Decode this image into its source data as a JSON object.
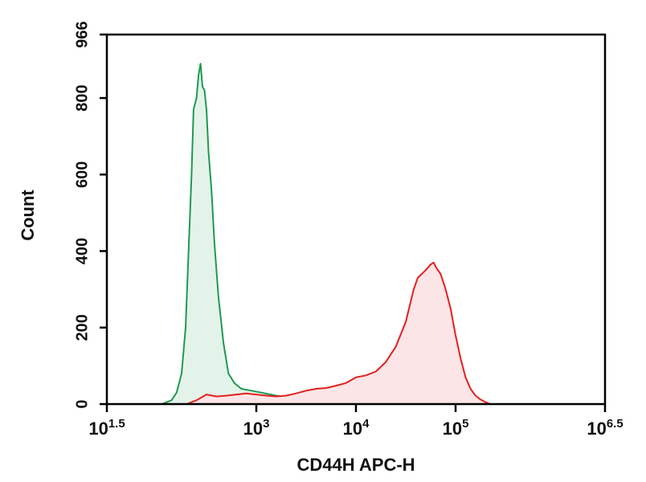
{
  "chart_data": {
    "type": "area",
    "title": "",
    "xlabel": "CD44H APC-H",
    "ylabel": "Count",
    "x_scale": "log10",
    "xlim_log10": [
      1.5,
      6.5
    ],
    "ylim": [
      0,
      966
    ],
    "grid": false,
    "legend": "none",
    "x_ticks": [
      {
        "base": "10",
        "exp": "1.5",
        "log10": 1.5
      },
      {
        "base": "10",
        "exp": "3",
        "log10": 3
      },
      {
        "base": "10",
        "exp": "4",
        "log10": 4
      },
      {
        "base": "10",
        "exp": "5",
        "log10": 5
      },
      {
        "base": "10",
        "exp": "6.5",
        "log10": 6.5
      }
    ],
    "y_ticks": [
      {
        "label": "0",
        "value": 0
      },
      {
        "label": "200",
        "value": 200
      },
      {
        "label": "400",
        "value": 400
      },
      {
        "label": "600",
        "value": 600
      },
      {
        "label": "800",
        "value": 800
      },
      {
        "label": "966",
        "value": 966
      }
    ],
    "series": [
      {
        "color": "#1e9a52",
        "fill": "#e4f3e9",
        "points": [
          [
            2.05,
            0
          ],
          [
            2.15,
            10
          ],
          [
            2.2,
            30
          ],
          [
            2.25,
            80
          ],
          [
            2.29,
            200
          ],
          [
            2.32,
            400
          ],
          [
            2.35,
            600
          ],
          [
            2.37,
            770
          ],
          [
            2.4,
            800
          ],
          [
            2.42,
            860
          ],
          [
            2.44,
            890
          ],
          [
            2.46,
            830
          ],
          [
            2.48,
            820
          ],
          [
            2.5,
            770
          ],
          [
            2.52,
            660
          ],
          [
            2.55,
            560
          ],
          [
            2.58,
            420
          ],
          [
            2.62,
            280
          ],
          [
            2.67,
            160
          ],
          [
            2.72,
            80
          ],
          [
            2.78,
            55
          ],
          [
            2.85,
            40
          ],
          [
            2.95,
            35
          ],
          [
            3.05,
            30
          ],
          [
            3.2,
            22
          ],
          [
            3.4,
            12
          ],
          [
            3.6,
            6
          ],
          [
            3.85,
            3
          ],
          [
            4.1,
            0
          ]
        ]
      },
      {
        "color": "#e32020",
        "fill": "#fce5e6",
        "points": [
          [
            2.3,
            0
          ],
          [
            2.4,
            10
          ],
          [
            2.5,
            25
          ],
          [
            2.6,
            20
          ],
          [
            2.7,
            22
          ],
          [
            2.8,
            25
          ],
          [
            2.9,
            28
          ],
          [
            3.0,
            25
          ],
          [
            3.1,
            22
          ],
          [
            3.2,
            20
          ],
          [
            3.3,
            22
          ],
          [
            3.4,
            28
          ],
          [
            3.5,
            35
          ],
          [
            3.6,
            40
          ],
          [
            3.7,
            42
          ],
          [
            3.8,
            48
          ],
          [
            3.9,
            55
          ],
          [
            4.0,
            70
          ],
          [
            4.1,
            75
          ],
          [
            4.2,
            85
          ],
          [
            4.3,
            110
          ],
          [
            4.4,
            150
          ],
          [
            4.5,
            215
          ],
          [
            4.58,
            300
          ],
          [
            4.62,
            330
          ],
          [
            4.66,
            340
          ],
          [
            4.7,
            350
          ],
          [
            4.75,
            365
          ],
          [
            4.78,
            370
          ],
          [
            4.81,
            355
          ],
          [
            4.85,
            340
          ],
          [
            4.9,
            300
          ],
          [
            4.95,
            250
          ],
          [
            5.0,
            180
          ],
          [
            5.05,
            120
          ],
          [
            5.1,
            70
          ],
          [
            5.15,
            40
          ],
          [
            5.2,
            22
          ],
          [
            5.25,
            12
          ],
          [
            5.3,
            5
          ],
          [
            5.35,
            0
          ]
        ]
      }
    ]
  }
}
